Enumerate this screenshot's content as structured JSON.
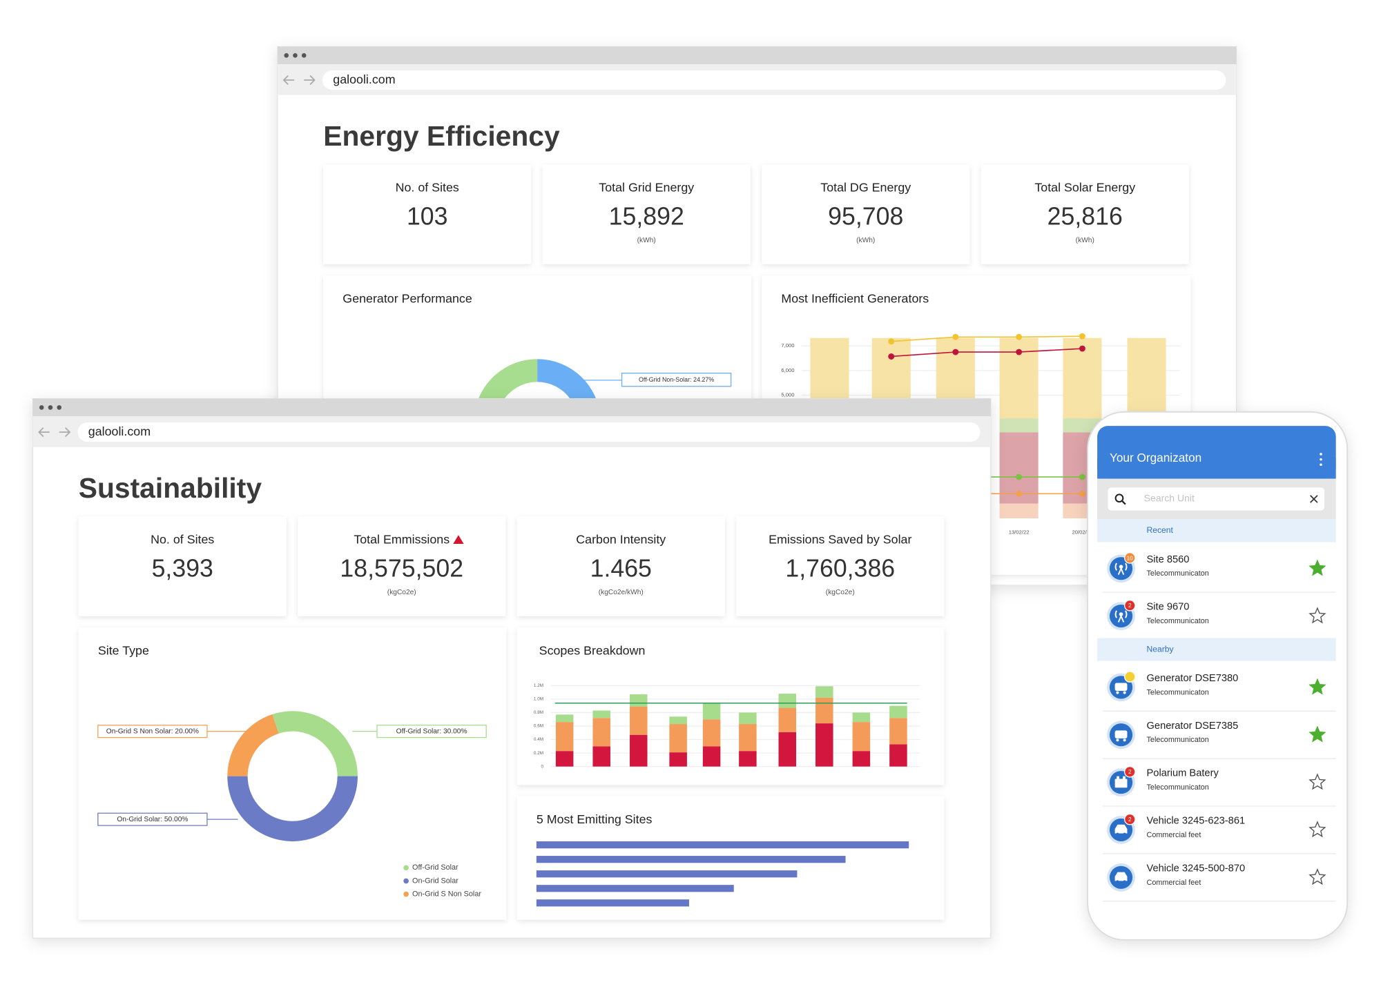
{
  "back_window": {
    "url": "galooli.com",
    "title": "Energy Efficiency",
    "kpis": [
      {
        "label": "No. of Sites",
        "value": "103"
      },
      {
        "label": "Total Grid Energy",
        "value": "15,892",
        "unit": "(kWh)"
      },
      {
        "label": "Total DG Energy",
        "value": "95,708",
        "unit": "(kWh)"
      },
      {
        "label": "Total Solar Energy",
        "value": "25,816",
        "unit": "(kWh)"
      }
    ],
    "charts": [
      {
        "type": "pie",
        "title": "Generator Performance",
        "values": [
          24.27,
          75.73
        ],
        "value_labels": [
          "Off-Grid Non-Solar: 24.27%",
          null
        ],
        "colors": [
          "#6aaef5",
          "#a6dd8e"
        ]
      },
      {
        "type": "bar_line",
        "title": "Most Inefficient Generators",
        "categories": [
          null,
          null,
          null,
          "13/02/22",
          "20/02/22",
          null
        ],
        "ylim": [
          0,
          7500
        ],
        "yticks": [
          {
            "value": 5000,
            "label": "5,000"
          },
          {
            "value": 6000,
            "label": "6,000"
          },
          {
            "value": 7000,
            "label": "7,000"
          }
        ],
        "series": [
          {
            "type": "bar",
            "color": "#f7d2bd",
            "values": [
              600,
              600,
              600,
              600,
              600,
              600
            ]
          },
          {
            "type": "bar",
            "color": "#dca3a8",
            "values": [
              2890,
              2890,
              2890,
              2890,
              2890,
              2890
            ]
          },
          {
            "type": "bar",
            "color": "#cfe3b5",
            "values": [
              570,
              570,
              570,
              570,
              570,
              570
            ]
          },
          {
            "type": "bar",
            "color": "#f8e3a6",
            "values": [
              3260,
              3260,
              3260,
              3260,
              3260,
              3260
            ]
          },
          {
            "type": "line",
            "color": "#f2c230",
            "values": [
              null,
              7180,
              7360,
              7360,
              7390,
              null
            ]
          },
          {
            "type": "line",
            "color": "#c0143c",
            "values": [
              null,
              6570,
              6750,
              6750,
              6890,
              null
            ]
          },
          {
            "type": "line",
            "color": "#7cc242",
            "values": [
              null,
              1680,
              1680,
              1680,
              1680,
              null
            ]
          },
          {
            "type": "line",
            "color": "#f5a04e",
            "values": [
              null,
              1000,
              1000,
              1000,
              1000,
              null
            ]
          }
        ]
      }
    ]
  },
  "front_window": {
    "url": "galooli.com",
    "title": "Sustainability",
    "kpis": [
      {
        "label": "No. of Sites",
        "value": "5,393"
      },
      {
        "label": "Total Emmissions",
        "value": "18,575,502",
        "unit": "(kgCo2e)",
        "trend": "up"
      },
      {
        "label": "Carbon Intensity",
        "value": "1.465",
        "unit": "(kgCo2e/kWh)"
      },
      {
        "label": "Emissions Saved by Solar",
        "value": "1,760,386",
        "unit": "(kgCo2e)"
      }
    ],
    "charts": [
      {
        "type": "pie",
        "title": "Site Type",
        "categories": [
          "Off-Grid Solar",
          "On-Grid Solar",
          "On-Grid S Non Solar"
        ],
        "values": [
          30,
          50,
          20
        ],
        "value_labels": [
          "Off-Grid Solar: 30.00%",
          "On-Grid Solar: 50.00%",
          "On-Grid S Non Solar: 20.00%"
        ],
        "colors": [
          "#a6dc8c",
          "#6b7bc6",
          "#f6a054"
        ]
      },
      {
        "type": "bar",
        "stacked": true,
        "title": "Scopes Breakdown",
        "categories": [
          null,
          null,
          null,
          null,
          null,
          null,
          null,
          null,
          null,
          null
        ],
        "ylim": [
          0,
          1200000
        ],
        "yticks": [
          0,
          {
            "value": 200000,
            "label": "0.2M"
          },
          {
            "value": 400000,
            "label": "0.4M"
          },
          {
            "value": 600000,
            "label": "0.6M"
          },
          {
            "value": 800000,
            "label": "0.8M"
          },
          {
            "value": 1000000,
            "label": "1.0M"
          },
          {
            "value": 1200000,
            "label": "1.2M"
          }
        ],
        "series": [
          {
            "color": "#d2163e",
            "values": [
              230000,
              300000,
              470000,
              210000,
              300000,
              230000,
              510000,
              640000,
              230000,
              330000
            ]
          },
          {
            "color": "#f59b5a",
            "values": [
              430000,
              420000,
              420000,
              420000,
              400000,
              400000,
              360000,
              380000,
              430000,
              390000
            ]
          },
          {
            "color": "#a6dc8c",
            "values": [
              110000,
              110000,
              180000,
              110000,
              240000,
              170000,
              210000,
              170000,
              140000,
              180000
            ]
          }
        ],
        "reference_line": {
          "value": 940000,
          "color": "#2e9d5a"
        }
      },
      {
        "type": "hbar",
        "title": "5 Most Emitting Sites",
        "categories": [
          null,
          null,
          null,
          null,
          null
        ],
        "values": [
          100,
          83,
          70,
          53,
          41
        ],
        "xlim": [
          0,
          100
        ],
        "color": "#6476c6"
      }
    ]
  },
  "mobile": {
    "title": "Your Organizaton",
    "search_placeholder": "Search Unit",
    "sections": [
      {
        "name": "Recent",
        "items": [
          {
            "name": "Site 8560",
            "subtitle": "Telecommunicaton",
            "icon": "antenna",
            "badge": "10",
            "badge_color": "#f08a3c",
            "starred": true
          },
          {
            "name": "Site 9670",
            "subtitle": "Telecommunicaton",
            "icon": "antenna",
            "badge": "2",
            "badge_color": "#e0302c",
            "starred": false
          }
        ]
      },
      {
        "name": "Nearby",
        "items": [
          {
            "name": "Generator DSE7380",
            "subtitle": "Telecommunicaton",
            "icon": "generator",
            "badge_color": "#f5d033",
            "starred": true
          },
          {
            "name": "Generator DSE7385",
            "subtitle": "Telecommunicaton",
            "icon": "generator",
            "starred": true
          },
          {
            "name": "Polarium Batery",
            "subtitle": "Telecommunicaton",
            "icon": "battery",
            "badge": "2",
            "badge_color": "#e0302c",
            "starred": false
          },
          {
            "name": "Vehicle 3245-623-861",
            "subtitle": "Commercial feet",
            "icon": "vehicle",
            "badge": "2",
            "badge_color": "#e0302c",
            "starred": false
          },
          {
            "name": "Vehicle 3245-500-870",
            "subtitle": "Commercial feet",
            "icon": "vehicle",
            "starred": false
          }
        ]
      }
    ]
  }
}
